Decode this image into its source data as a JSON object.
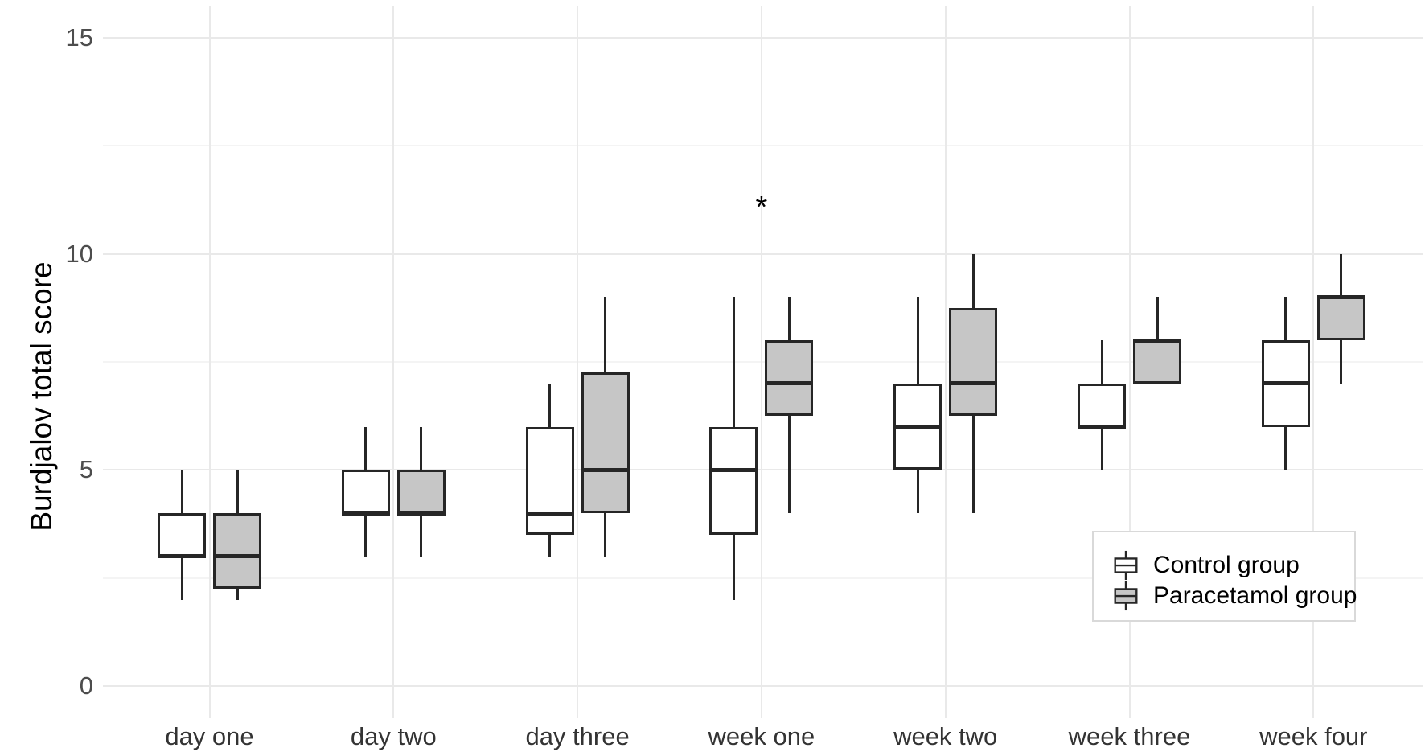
{
  "chart_data": {
    "type": "boxplot",
    "title": "",
    "xlabel": "",
    "ylabel": "Burdjalov total score",
    "ylim": [
      0,
      15
    ],
    "yticks": [
      0,
      5,
      10,
      15
    ],
    "yticks_minor": [
      2.5,
      7.5,
      12.5
    ],
    "grid": "on",
    "categories": [
      "day one",
      "day two",
      "day three",
      "week one",
      "week two",
      "week three",
      "week four"
    ],
    "series": [
      {
        "name": "Control group",
        "fill": "#ffffff",
        "boxes": [
          {
            "min": 2,
            "q1": 3,
            "median": 3,
            "q3": 4,
            "max": 5
          },
          {
            "min": 3,
            "q1": 4,
            "median": 4,
            "q3": 5,
            "max": 6
          },
          {
            "min": 3,
            "q1": 3.5,
            "median": 4,
            "q3": 6,
            "max": 7
          },
          {
            "min": 2,
            "q1": 3.5,
            "median": 5,
            "q3": 6,
            "max": 9
          },
          {
            "min": 4,
            "q1": 5,
            "median": 6,
            "q3": 7,
            "max": 9
          },
          {
            "min": 5,
            "q1": 6,
            "median": 6,
            "q3": 7,
            "max": 8
          },
          {
            "min": 5,
            "q1": 6,
            "median": 7,
            "q3": 8,
            "max": 9
          }
        ]
      },
      {
        "name": "Paracetamol group",
        "fill": "#c6c6c6",
        "boxes": [
          {
            "min": 2,
            "q1": 2.25,
            "median": 3,
            "q3": 4,
            "max": 5
          },
          {
            "min": 3,
            "q1": 4,
            "median": 4,
            "q3": 5,
            "max": 6
          },
          {
            "min": 3,
            "q1": 4,
            "median": 5,
            "q3": 7.25,
            "max": 9
          },
          {
            "min": 4,
            "q1": 6.25,
            "median": 7,
            "q3": 8,
            "max": 9
          },
          {
            "min": 4,
            "q1": 6.25,
            "median": 7,
            "q3": 8.75,
            "max": 10
          },
          {
            "min": 7,
            "q1": 7,
            "median": 8,
            "q3": 8,
            "max": 9
          },
          {
            "min": 7,
            "q1": 8,
            "median": 9,
            "q3": 9,
            "max": 10
          }
        ]
      }
    ],
    "annotations": [
      {
        "text": "*",
        "category_index": 3,
        "y": 11.2
      }
    ],
    "legend": {
      "position": "bottom-right",
      "entries": [
        "Control group",
        "Paracetamol group"
      ]
    },
    "colors": {
      "background": "#ffffff",
      "box_border": "#262626",
      "control_fill": "#ffffff",
      "paracetamol_fill": "#c6c6c6",
      "gridline_major": "#e9e9e9",
      "gridline_minor": "#f4f4f4",
      "tick_text": "#4d4d4d",
      "label_text": "#333333",
      "axis_title_text": "#000000",
      "legend_border": "#d9d9d9"
    }
  }
}
